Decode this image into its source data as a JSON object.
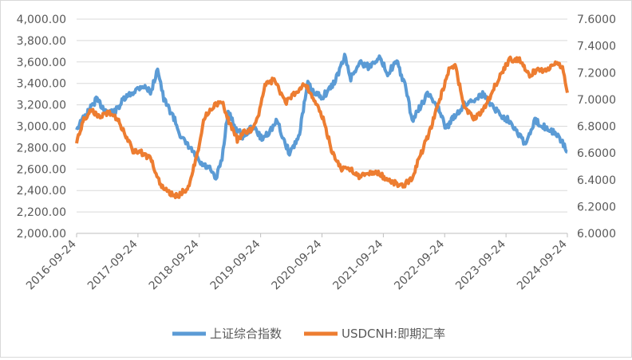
{
  "chart_data": {
    "type": "line",
    "title": "",
    "xlabel": "",
    "ylabel": "",
    "x_ticks": [
      "2016-09-24",
      "2017-09-24",
      "2018-09-24",
      "2019-09-24",
      "2020-09-24",
      "2021-09-24",
      "2022-09-24",
      "2023-09-24",
      "2024-09-24"
    ],
    "y_left": {
      "range": [
        2000,
        4000
      ],
      "ticks": [
        "2,000.00",
        "2,200.00",
        "2,400.00",
        "2,600.00",
        "2,800.00",
        "3,000.00",
        "3,200.00",
        "3,400.00",
        "3,600.00",
        "3,800.00",
        "4,000.00"
      ]
    },
    "y_right": {
      "range": [
        6.0,
        7.6
      ],
      "ticks": [
        "6.0000",
        "6.2000",
        "6.4000",
        "6.6000",
        "6.8000",
        "7.0000",
        "7.2000",
        "7.4000",
        "7.6000"
      ]
    },
    "grid": "horizontal",
    "legend_position": "bottom",
    "series": [
      {
        "name": "上证综合指数",
        "axis": "left",
        "color": "#5b9bd5",
        "x": [
          2016.73,
          2016.9,
          2017.05,
          2017.2,
          2017.35,
          2017.5,
          2017.65,
          2017.8,
          2017.95,
          2018.05,
          2018.15,
          2018.3,
          2018.45,
          2018.6,
          2018.75,
          2018.9,
          2019.0,
          2019.1,
          2019.2,
          2019.3,
          2019.45,
          2019.6,
          2019.75,
          2019.9,
          2020.0,
          2020.1,
          2020.2,
          2020.35,
          2020.5,
          2020.6,
          2020.75,
          2020.9,
          2021.0,
          2021.1,
          2021.2,
          2021.35,
          2021.5,
          2021.65,
          2021.8,
          2021.95,
          2022.1,
          2022.2,
          2022.3,
          2022.45,
          2022.6,
          2022.75,
          2022.9,
          2023.05,
          2023.2,
          2023.35,
          2023.5,
          2023.65,
          2023.8,
          2023.95,
          2024.05,
          2024.2,
          2024.35,
          2024.5,
          2024.65,
          2024.73
        ],
        "values": [
          2980,
          3120,
          3250,
          3150,
          3130,
          3250,
          3320,
          3380,
          3320,
          3550,
          3250,
          3100,
          2880,
          2780,
          2650,
          2600,
          2500,
          2700,
          3150,
          3000,
          2900,
          3000,
          2880,
          2970,
          3050,
          2880,
          2750,
          2900,
          3400,
          3300,
          3280,
          3380,
          3500,
          3650,
          3450,
          3600,
          3550,
          3650,
          3500,
          3600,
          3350,
          3050,
          3150,
          3300,
          3200,
          2980,
          3100,
          3200,
          3250,
          3300,
          3200,
          3100,
          3050,
          2920,
          2830,
          3050,
          3000,
          2950,
          2850,
          2760
        ]
      },
      {
        "name": "USDCNH:即期汇率",
        "axis": "right",
        "color": "#ed7d31",
        "x": [
          2016.73,
          2016.85,
          2016.95,
          2017.1,
          2017.25,
          2017.4,
          2017.55,
          2017.65,
          2017.8,
          2017.95,
          2018.1,
          2018.25,
          2018.4,
          2018.55,
          2018.7,
          2018.8,
          2018.95,
          2019.1,
          2019.2,
          2019.35,
          2019.45,
          2019.6,
          2019.7,
          2019.8,
          2019.95,
          2020.05,
          2020.15,
          2020.3,
          2020.45,
          2020.6,
          2020.75,
          2020.9,
          2021.05,
          2021.2,
          2021.35,
          2021.5,
          2021.65,
          2021.8,
          2021.95,
          2022.05,
          2022.2,
          2022.35,
          2022.5,
          2022.65,
          2022.8,
          2022.9,
          2023.05,
          2023.2,
          2023.35,
          2023.5,
          2023.65,
          2023.8,
          2023.95,
          2024.1,
          2024.25,
          2024.4,
          2024.55,
          2024.65,
          2024.73
        ],
        "values": [
          6.68,
          6.85,
          6.92,
          6.88,
          6.9,
          6.85,
          6.72,
          6.62,
          6.6,
          6.55,
          6.35,
          6.3,
          6.28,
          6.35,
          6.6,
          6.85,
          6.95,
          6.98,
          6.85,
          6.7,
          6.75,
          6.78,
          6.9,
          7.1,
          7.15,
          7.05,
          6.98,
          7.05,
          7.12,
          7.0,
          6.85,
          6.6,
          6.48,
          6.48,
          6.42,
          6.45,
          6.45,
          6.4,
          6.37,
          6.35,
          6.42,
          6.6,
          6.78,
          7.0,
          7.22,
          7.25,
          6.95,
          6.85,
          6.92,
          7.05,
          7.2,
          7.3,
          7.3,
          7.18,
          7.22,
          7.22,
          7.28,
          7.24,
          7.05
        ]
      }
    ]
  }
}
